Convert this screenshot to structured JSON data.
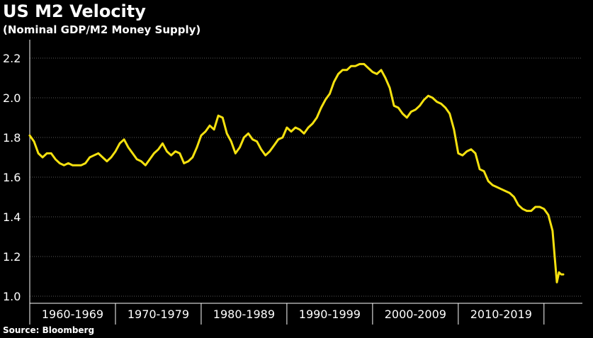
{
  "header": {
    "title": "US M2 Velocity",
    "subtitle": "(Nominal GDP/M2 Money Supply)"
  },
  "footer": {
    "source": "Source: Bloomberg"
  },
  "colors": {
    "background": "#000000",
    "line": "#f5e10f",
    "grid": "#5a5a5a",
    "axis": "#ffffff"
  },
  "chart_data": {
    "type": "line",
    "title": "US M2 Velocity",
    "subtitle": "(Nominal GDP/M2 Money Supply)",
    "xlabel": "",
    "ylabel": "",
    "ylim": [
      1.0,
      2.25
    ],
    "xlim": [
      1959.0,
      2021.0
    ],
    "y_ticks": [
      1.0,
      1.2,
      1.4,
      1.6,
      1.8,
      2.0,
      2.2
    ],
    "y_tick_labels": [
      "1.0",
      "1.2",
      "1.4",
      "1.6",
      "1.8",
      "2.0",
      "2.2"
    ],
    "x_categories": [
      "1960-1969",
      "1970-1979",
      "1980-1989",
      "1990-1999",
      "2000-2009",
      "2010-2019"
    ],
    "x_category_bounds": [
      [
        1959.0,
        1969.0
      ],
      [
        1969.0,
        1979.0
      ],
      [
        1979.0,
        1989.0
      ],
      [
        1989.0,
        1999.0
      ],
      [
        1999.0,
        2009.0
      ],
      [
        2009.0,
        2019.0
      ]
    ],
    "grid": true,
    "series": [
      {
        "x": [
          1959.0,
          1959.5,
          1960.0,
          1960.5,
          1961.0,
          1961.5,
          1962.0,
          1962.5,
          1963.0,
          1963.5,
          1964.0,
          1964.5,
          1965.0,
          1965.5,
          1966.0,
          1966.5,
          1967.0,
          1967.5,
          1968.0,
          1968.5,
          1969.0,
          1969.5,
          1970.0,
          1970.5,
          1971.0,
          1971.5,
          1972.0,
          1972.5,
          1973.0,
          1973.5,
          1974.0,
          1974.5,
          1975.0,
          1975.5,
          1976.0,
          1976.5,
          1977.0,
          1977.5,
          1978.0,
          1978.5,
          1979.0,
          1979.5,
          1980.0,
          1980.5,
          1981.0,
          1981.5,
          1982.0,
          1982.5,
          1983.0,
          1983.5,
          1984.0,
          1984.5,
          1985.0,
          1985.5,
          1986.0,
          1986.5,
          1987.0,
          1987.5,
          1988.0,
          1988.5,
          1989.0,
          1989.5,
          1990.0,
          1990.5,
          1991.0,
          1991.5,
          1992.0,
          1992.5,
          1993.0,
          1993.5,
          1994.0,
          1994.5,
          1995.0,
          1995.5,
          1996.0,
          1996.5,
          1997.0,
          1997.5,
          1998.0,
          1998.5,
          1999.0,
          1999.5,
          2000.0,
          2000.5,
          2001.0,
          2001.5,
          2002.0,
          2002.5,
          2003.0,
          2003.5,
          2004.0,
          2004.5,
          2005.0,
          2005.5,
          2006.0,
          2006.5,
          2007.0,
          2007.5,
          2008.0,
          2008.5,
          2009.0,
          2009.5,
          2010.0,
          2010.5,
          2011.0,
          2011.5,
          2012.0,
          2012.5,
          2013.0,
          2013.5,
          2014.0,
          2014.5,
          2015.0,
          2015.5,
          2016.0,
          2016.5,
          2017.0,
          2017.5,
          2018.0,
          2018.5,
          2019.0,
          2019.5,
          2020.0,
          2020.25,
          2020.5,
          2020.75,
          2021.0,
          2021.25
        ],
        "y": [
          1.81,
          1.78,
          1.72,
          1.7,
          1.72,
          1.72,
          1.69,
          1.67,
          1.66,
          1.67,
          1.66,
          1.66,
          1.66,
          1.67,
          1.7,
          1.71,
          1.72,
          1.7,
          1.68,
          1.7,
          1.73,
          1.77,
          1.79,
          1.75,
          1.72,
          1.69,
          1.68,
          1.66,
          1.69,
          1.72,
          1.74,
          1.77,
          1.73,
          1.71,
          1.73,
          1.72,
          1.67,
          1.68,
          1.7,
          1.75,
          1.81,
          1.83,
          1.86,
          1.84,
          1.91,
          1.9,
          1.82,
          1.78,
          1.72,
          1.75,
          1.8,
          1.82,
          1.79,
          1.78,
          1.74,
          1.71,
          1.73,
          1.76,
          1.79,
          1.8,
          1.85,
          1.83,
          1.85,
          1.84,
          1.82,
          1.85,
          1.87,
          1.9,
          1.95,
          1.99,
          2.02,
          2.08,
          2.12,
          2.14,
          2.14,
          2.16,
          2.16,
          2.17,
          2.17,
          2.15,
          2.13,
          2.12,
          2.14,
          2.1,
          2.05,
          1.96,
          1.95,
          1.92,
          1.9,
          1.93,
          1.94,
          1.96,
          1.99,
          2.01,
          2.0,
          1.98,
          1.97,
          1.95,
          1.92,
          1.84,
          1.72,
          1.71,
          1.73,
          1.74,
          1.72,
          1.64,
          1.63,
          1.58,
          1.56,
          1.55,
          1.54,
          1.53,
          1.52,
          1.5,
          1.46,
          1.44,
          1.43,
          1.43,
          1.45,
          1.45,
          1.44,
          1.41,
          1.33,
          1.2,
          1.07,
          1.12,
          1.11,
          1.11
        ]
      }
    ]
  }
}
